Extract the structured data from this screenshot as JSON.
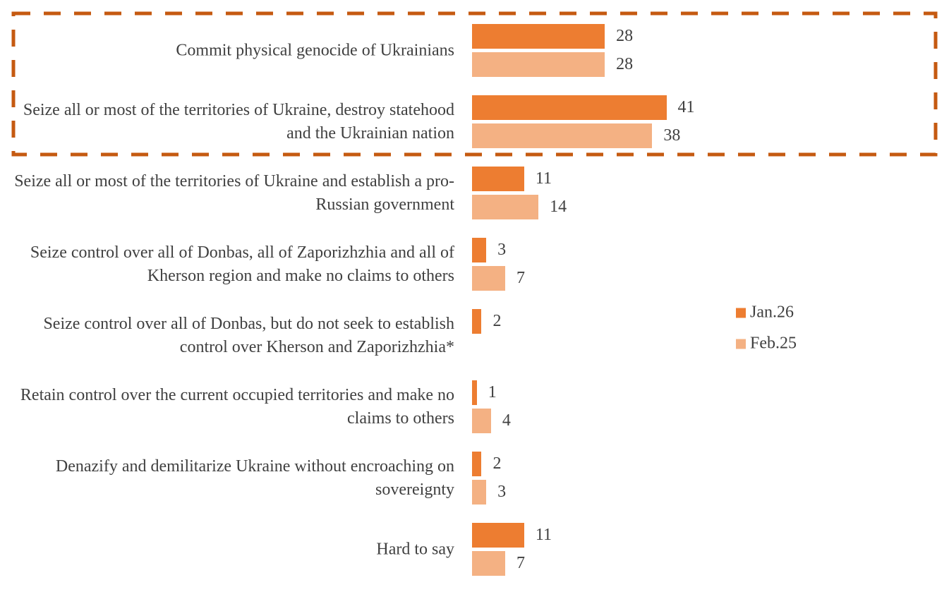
{
  "chart_data": {
    "type": "bar",
    "orientation": "horizontal",
    "categories": [
      "Commit physical genocide of Ukrainians",
      "Seize all or most of the territories of Ukraine, destroy statehood and the Ukrainian nation",
      "Seize all or most of the territories of Ukraine and establish a pro-Russian government",
      "Seize control over all of Donbas, all of Zaporizhzhia and all of Kherson region and make no claims to others",
      "Seize control over all of Donbas, but do not seek to establish control over Kherson and Zaporizhzhia*",
      "Retain control over the current occupied territories and make no claims to others",
      "Denazify and demilitarize Ukraine without encroaching on sovereignty",
      "Hard to say"
    ],
    "series": [
      {
        "name": "Jan.26",
        "color": "#ED7D31",
        "values": [
          28,
          41,
          11,
          3,
          2,
          1,
          2,
          11
        ]
      },
      {
        "name": "Feb.25",
        "color": "#F4B183",
        "values": [
          28,
          38,
          14,
          7,
          null,
          4,
          3,
          7
        ]
      }
    ],
    "legend": "right",
    "highlight": {
      "categories": [
        0,
        1
      ],
      "color": "#C55A11",
      "style": "dashed"
    },
    "grid": false
  }
}
